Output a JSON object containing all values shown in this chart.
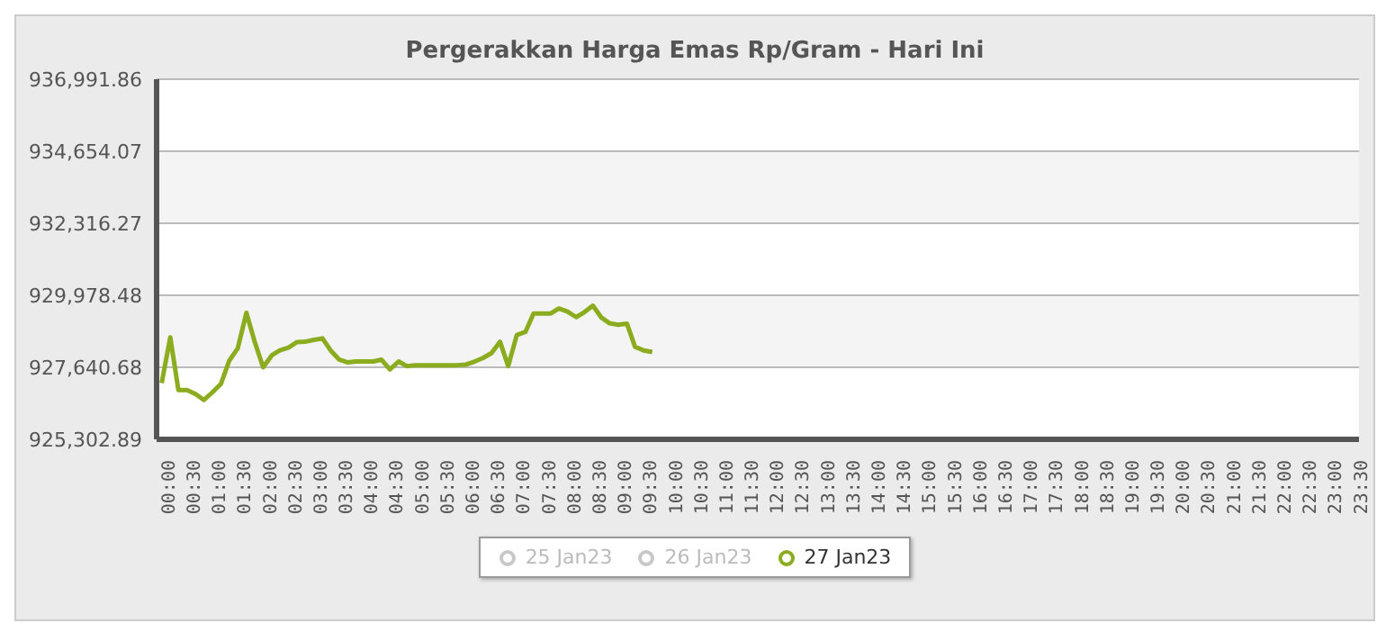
{
  "chart_data": {
    "type": "line",
    "title": "Pergerakkan Harga Emas Rp/Gram - Hari Ini",
    "x": [
      0,
      0.17,
      0.33,
      0.5,
      0.67,
      0.83,
      1,
      1.17,
      1.33,
      1.5,
      1.67,
      1.83,
      2,
      2.17,
      2.33,
      2.5,
      2.67,
      2.83,
      3,
      3.17,
      3.33,
      3.5,
      3.67,
      3.83,
      4,
      4.17,
      4.33,
      4.5,
      4.67,
      4.83,
      5,
      5.17,
      5.33,
      5.5,
      5.67,
      5.83,
      6,
      6.17,
      6.33,
      6.5,
      6.67,
      6.83,
      7,
      7.17,
      7.33,
      7.5,
      7.67,
      7.83,
      8,
      8.17,
      8.33,
      8.5,
      8.67,
      8.83,
      9,
      9.17,
      9.33,
      9.5,
      9.67
    ],
    "series": [
      {
        "name": "25 Jan23",
        "color": "#c8c8c8",
        "values": [
          null,
          null,
          null,
          null,
          null,
          null,
          null,
          null,
          null,
          null,
          null,
          null,
          null,
          null,
          null,
          null,
          null,
          null,
          null,
          null,
          null,
          null,
          null,
          null,
          null,
          null,
          null,
          null,
          null,
          null,
          null,
          null,
          null,
          null,
          null,
          null,
          null,
          null,
          null,
          null,
          null,
          null,
          null,
          null,
          null,
          null,
          null,
          null,
          null,
          null,
          null,
          null,
          null,
          null,
          null,
          null,
          null,
          null,
          null
        ]
      },
      {
        "name": "26 Jan23",
        "color": "#c8c8c8",
        "values": [
          null,
          null,
          null,
          null,
          null,
          null,
          null,
          null,
          null,
          null,
          null,
          null,
          null,
          null,
          null,
          null,
          null,
          null,
          null,
          null,
          null,
          null,
          null,
          null,
          null,
          null,
          null,
          null,
          null,
          null,
          null,
          null,
          null,
          null,
          null,
          null,
          null,
          null,
          null,
          null,
          null,
          null,
          null,
          null,
          null,
          null,
          null,
          null,
          null,
          null,
          null,
          null,
          null,
          null,
          null,
          null,
          null,
          null,
          null
        ]
      },
      {
        "name": "27 Jan23",
        "color": "#8bac1e",
        "values": [
          927130,
          928610,
          926900,
          926900,
          926770,
          926580,
          926830,
          927110,
          927850,
          928260,
          929410,
          928490,
          927640,
          928030,
          928190,
          928280,
          928460,
          928470,
          928530,
          928580,
          928190,
          927890,
          927800,
          927830,
          927830,
          927830,
          927890,
          927570,
          927830,
          927680,
          927710,
          927710,
          927710,
          927710,
          927710,
          927710,
          927730,
          927830,
          927940,
          928100,
          928470,
          927680,
          928690,
          928790,
          929390,
          929390,
          929390,
          929550,
          929450,
          929270,
          929430,
          929640,
          929250,
          929070,
          929020,
          929060,
          928310,
          928190,
          928140
        ]
      }
    ],
    "xlim": [
      -0.1,
      23.6
    ],
    "xticks": [
      {
        "value": 0,
        "label": "00:00"
      },
      {
        "value": 0.5,
        "label": "00:30"
      },
      {
        "value": 1,
        "label": "01:00"
      },
      {
        "value": 1.5,
        "label": "01:30"
      },
      {
        "value": 2,
        "label": "02:00"
      },
      {
        "value": 2.5,
        "label": "02:30"
      },
      {
        "value": 3,
        "label": "03:00"
      },
      {
        "value": 3.5,
        "label": "03:30"
      },
      {
        "value": 4,
        "label": "04:00"
      },
      {
        "value": 4.5,
        "label": "04:30"
      },
      {
        "value": 5,
        "label": "05:00"
      },
      {
        "value": 5.5,
        "label": "05:30"
      },
      {
        "value": 6,
        "label": "06:00"
      },
      {
        "value": 6.5,
        "label": "06:30"
      },
      {
        "value": 7,
        "label": "07:00"
      },
      {
        "value": 7.5,
        "label": "07:30"
      },
      {
        "value": 8,
        "label": "08:00"
      },
      {
        "value": 8.5,
        "label": "08:30"
      },
      {
        "value": 9,
        "label": "09:00"
      },
      {
        "value": 9.5,
        "label": "09:30"
      },
      {
        "value": 10,
        "label": "10:00"
      },
      {
        "value": 10.5,
        "label": "10:30"
      },
      {
        "value": 11,
        "label": "11:00"
      },
      {
        "value": 11.5,
        "label": "11:30"
      },
      {
        "value": 12,
        "label": "12:00"
      },
      {
        "value": 12.5,
        "label": "12:30"
      },
      {
        "value": 13,
        "label": "13:00"
      },
      {
        "value": 13.5,
        "label": "13:30"
      },
      {
        "value": 14,
        "label": "14:00"
      },
      {
        "value": 14.5,
        "label": "14:30"
      },
      {
        "value": 15,
        "label": "15:00"
      },
      {
        "value": 15.5,
        "label": "15:30"
      },
      {
        "value": 16,
        "label": "16:00"
      },
      {
        "value": 16.5,
        "label": "16:30"
      },
      {
        "value": 17,
        "label": "17:00"
      },
      {
        "value": 17.5,
        "label": "17:30"
      },
      {
        "value": 18,
        "label": "18:00"
      },
      {
        "value": 18.5,
        "label": "18:30"
      },
      {
        "value": 19,
        "label": "19:00"
      },
      {
        "value": 19.5,
        "label": "19:30"
      },
      {
        "value": 20,
        "label": "20:00"
      },
      {
        "value": 20.5,
        "label": "20:30"
      },
      {
        "value": 21,
        "label": "21:00"
      },
      {
        "value": 21.5,
        "label": "21:30"
      },
      {
        "value": 22,
        "label": "22:00"
      },
      {
        "value": 22.5,
        "label": "22:30"
      },
      {
        "value": 23,
        "label": "23:00"
      },
      {
        "value": 23.5,
        "label": "23:30"
      }
    ],
    "ylim": [
      925302.89,
      936991.86
    ],
    "yticks": [
      {
        "value": 925302.89,
        "label": "925,302.89"
      },
      {
        "value": 927640.68,
        "label": "927,640.68"
      },
      {
        "value": 929978.48,
        "label": "929,978.48"
      },
      {
        "value": 932316.27,
        "label": "932,316.27"
      },
      {
        "value": 934654.07,
        "label": "934,654.07"
      },
      {
        "value": 936991.86,
        "label": "936,991.86"
      }
    ],
    "grid": "y",
    "legend": "bottom",
    "marker": "none"
  }
}
